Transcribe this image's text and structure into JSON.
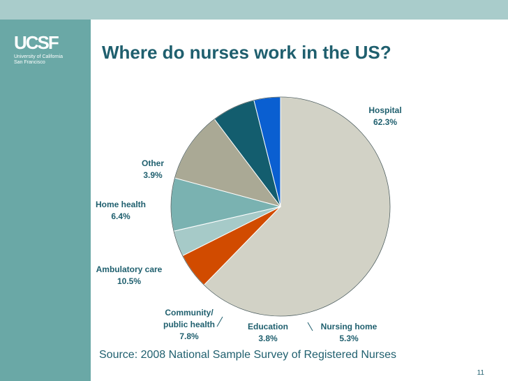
{
  "logo": {
    "mark": "UCSF",
    "line1": "University of California",
    "line2": "San Francisco"
  },
  "slide": {
    "title": "Where do nurses work in the US?",
    "source": "Source: 2008 National Sample Survey of Registered Nurses",
    "page_number": "11"
  },
  "chart_data": {
    "type": "pie",
    "title": "Where do nurses work in the US?",
    "start": "top, clockwise",
    "slices": [
      {
        "name": "Hospital",
        "line1": "Hospital",
        "line2": "",
        "pct_label": "62.3%",
        "value": 62.3,
        "color": "#d2d2c6"
      },
      {
        "name": "Nursing home",
        "line1": "Nursing home",
        "line2": "",
        "pct_label": "5.3%",
        "value": 5.3,
        "color": "#d14b00"
      },
      {
        "name": "Education",
        "line1": "Education",
        "line2": "",
        "pct_label": "3.8%",
        "value": 3.8,
        "color": "#a6cac8"
      },
      {
        "name": "Community/ public health",
        "line1": "Community/",
        "line2": "public health",
        "pct_label": "7.8%",
        "value": 7.8,
        "color": "#7ab2b1"
      },
      {
        "name": "Ambulatory care",
        "line1": "Ambulatory care",
        "line2": "",
        "pct_label": "10.5%",
        "value": 10.5,
        "color": "#aaa995"
      },
      {
        "name": "Home health",
        "line1": "Home health",
        "line2": "",
        "pct_label": "6.4%",
        "value": 6.4,
        "color": "#135d6e"
      },
      {
        "name": "Other",
        "line1": "Other",
        "line2": "",
        "pct_label": "3.9%",
        "value": 3.9,
        "color": "#0a5fd1"
      }
    ]
  }
}
